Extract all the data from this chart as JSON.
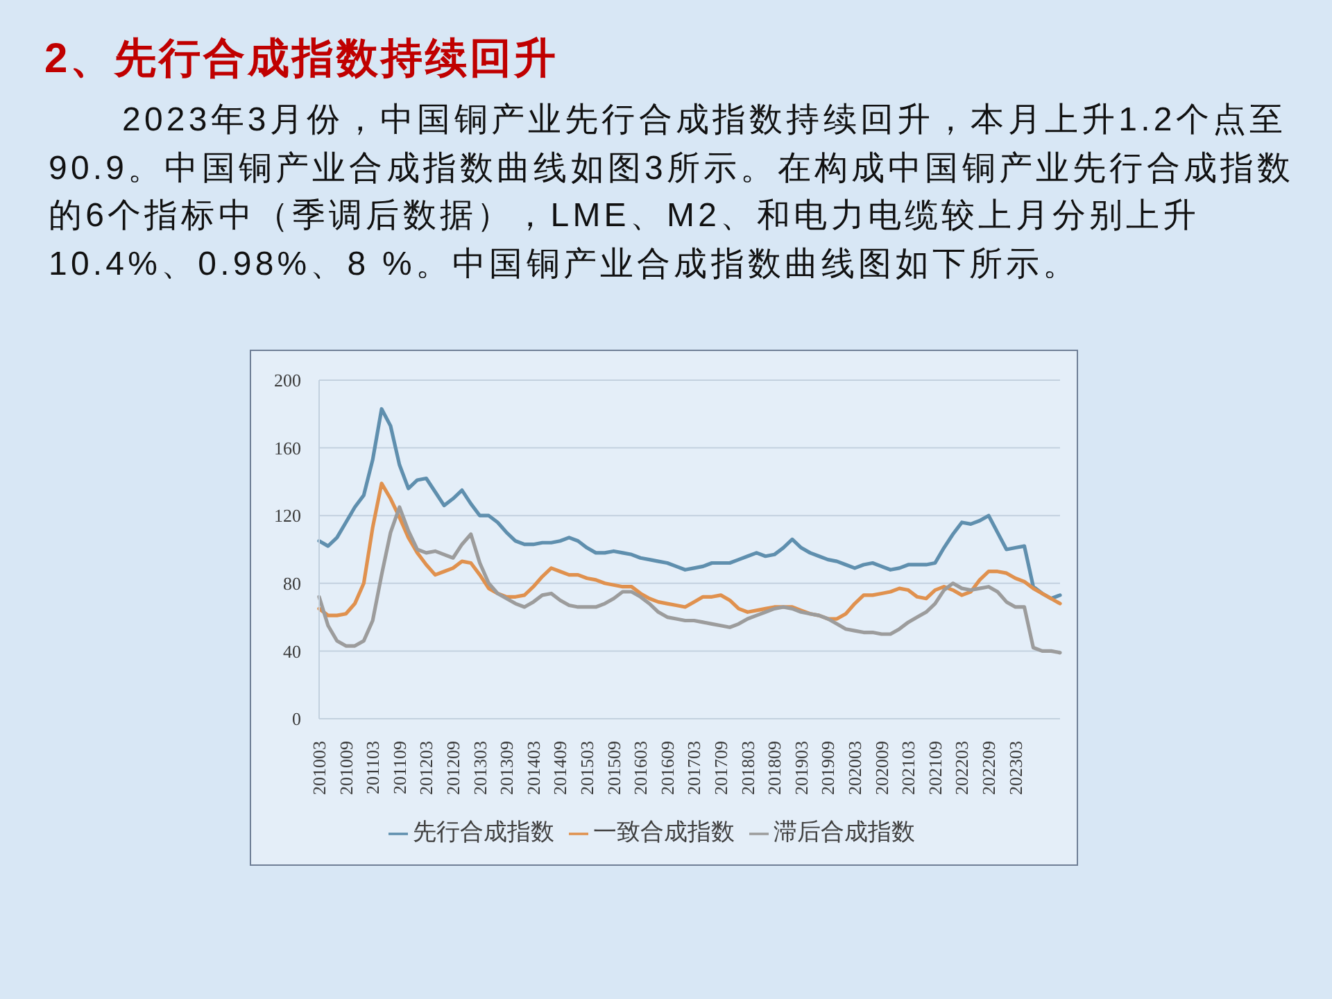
{
  "chart_data": {
    "type": "line",
    "title": "2、先行合成指数持续回升",
    "subtitle": "2023年3月份，中国铜产业先行合成指数持续回升，本月上升1.2个点至90.9。中国铜产业合成指数曲线如图3所示。在构成中国铜产业先行合成指数的6个指标中（季调后数据），LME、M2、和电力电缆较上月分别上升10.4%、0.98%、8 %。中国铜产业合成指数曲线图如下所示。",
    "categories": [
      "201003",
      null,
      null,
      "201009",
      null,
      null,
      "201103",
      null,
      null,
      "201109",
      null,
      null,
      "201203",
      null,
      null,
      "201209",
      null,
      null,
      "201303",
      null,
      null,
      "201309",
      null,
      null,
      "201403",
      null,
      null,
      "201409",
      null,
      null,
      "201503",
      null,
      null,
      "201509",
      null,
      null,
      "201603",
      null,
      null,
      "201609",
      null,
      null,
      "201703",
      null,
      null,
      "201709",
      null,
      null,
      "201803",
      null,
      null,
      "201809",
      null,
      null,
      "201903",
      null,
      null,
      "201909",
      null,
      null,
      "202003",
      null,
      null,
      "202009",
      null,
      null,
      "202103",
      null,
      null,
      "202109",
      null,
      null,
      "202203",
      null,
      null,
      "202209",
      null,
      null,
      "202303",
      null,
      null,
      null,
      null,
      null
    ],
    "series": [
      {
        "name": "先行合成指数",
        "color": "#5f8fae",
        "values": [
          105,
          102,
          107,
          116,
          125,
          132,
          153,
          183,
          173,
          150,
          136,
          141,
          142,
          134,
          126,
          130,
          135,
          127,
          120,
          120,
          116,
          110,
          105,
          103,
          103,
          104,
          104,
          105,
          107,
          105,
          101,
          98,
          98,
          99,
          98,
          97,
          95,
          94,
          93,
          92,
          90,
          88,
          89,
          90,
          92,
          92,
          92,
          94,
          96,
          98,
          96,
          97,
          101,
          106,
          101,
          98,
          96,
          94,
          93,
          91,
          89,
          91,
          92,
          90,
          88,
          89,
          91,
          91,
          91,
          92,
          101,
          109,
          116,
          115,
          117,
          120,
          110,
          100,
          101,
          102,
          78,
          74,
          71,
          73
        ]
      },
      {
        "name": "一致合成指数",
        "color": "#e0914e",
        "values": [
          65,
          61,
          61,
          62,
          68,
          80,
          113,
          139,
          130,
          119,
          107,
          98,
          91,
          85,
          87,
          89,
          93,
          92,
          85,
          77,
          74,
          72,
          72,
          73,
          78,
          84,
          89,
          87,
          85,
          85,
          83,
          82,
          80,
          79,
          78,
          78,
          74,
          71,
          69,
          68,
          67,
          66,
          69,
          72,
          72,
          73,
          70,
          65,
          63,
          64,
          65,
          66,
          66,
          66,
          64,
          62,
          61,
          59,
          59,
          62,
          68,
          73,
          73,
          74,
          75,
          77,
          76,
          72,
          71,
          76,
          78,
          76,
          73,
          75,
          82,
          87,
          87,
          86,
          83,
          81,
          77,
          74,
          71,
          68
        ]
      },
      {
        "name": "滞后合成指数",
        "color": "#9c9c9c",
        "values": [
          72,
          55,
          46,
          43,
          43,
          46,
          58,
          85,
          110,
          125,
          111,
          100,
          98,
          99,
          97,
          95,
          103,
          109,
          92,
          80,
          74,
          71,
          68,
          66,
          69,
          73,
          74,
          70,
          67,
          66,
          66,
          66,
          68,
          71,
          75,
          75,
          72,
          68,
          63,
          60,
          59,
          58,
          58,
          57,
          56,
          55,
          54,
          56,
          59,
          61,
          63,
          65,
          66,
          65,
          63,
          62,
          61,
          59,
          56,
          53,
          52,
          51,
          51,
          50,
          50,
          53,
          57,
          60,
          63,
          68,
          76,
          80,
          77,
          76,
          77,
          78,
          75,
          69,
          66,
          66,
          42,
          40,
          40,
          39
        ]
      }
    ],
    "ylim": [
      0,
      200
    ],
    "yticks": [
      0,
      40,
      80,
      120,
      160,
      200
    ],
    "grid": "y",
    "legend": "bottom",
    "marker": "none"
  }
}
